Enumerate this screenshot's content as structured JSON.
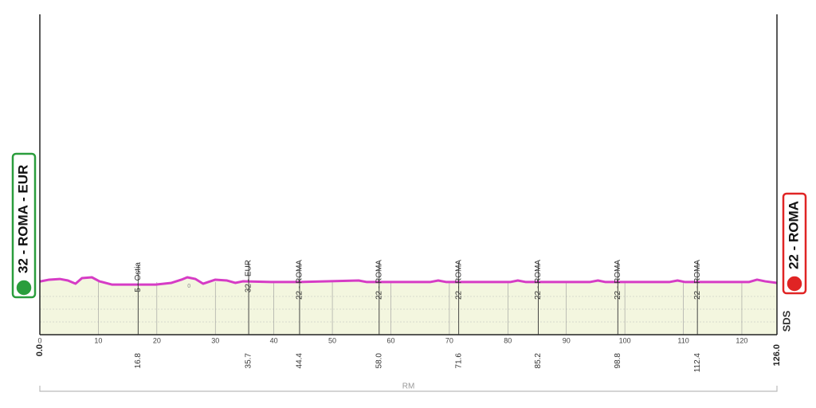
{
  "chart_data": {
    "type": "area",
    "x": [
      0,
      1.6,
      3.4,
      4.8,
      6.1,
      7.2,
      8.9,
      10.2,
      12.3,
      15,
      17,
      19.8,
      22.5,
      24.2,
      25.2,
      26.6,
      27.9,
      30,
      32,
      33.4,
      34.7,
      39.5,
      44.3,
      54.5,
      55.9,
      66.7,
      68.1,
      69.5,
      80.4,
      81.7,
      83.1,
      94,
      95.4,
      96.7,
      107.6,
      109,
      110.3,
      121.2,
      122.6,
      124,
      126
    ],
    "values": [
      32,
      45,
      50,
      39,
      16,
      56,
      62,
      33,
      10,
      10,
      10,
      10,
      22,
      45,
      62,
      50,
      16,
      45,
      39,
      22,
      33,
      28,
      28,
      39,
      28,
      28,
      39,
      28,
      28,
      39,
      28,
      28,
      39,
      28,
      28,
      39,
      28,
      28,
      45,
      33,
      22
    ],
    "color": "#d63cc5",
    "fill": "#f3f6df",
    "xlim": [
      0,
      126
    ],
    "ylim": [
      -350,
      1950
    ],
    "xticks": [
      0,
      10,
      20,
      30,
      40,
      50,
      60,
      70,
      80,
      90,
      100,
      110,
      120
    ],
    "start": {
      "km": {
        "value": 0,
        "label": "0.0"
      },
      "label": "32 - ROMA - EUR",
      "color": "#2a9d3c"
    },
    "finish": {
      "km": {
        "value": 126,
        "label": "126.0"
      },
      "label": "22 - ROMA",
      "color": "#e02424"
    },
    "waypoints": [
      {
        "km": 16.8,
        "label": "5 - Ostia"
      },
      {
        "km": 35.7,
        "label": "32 - EUR"
      },
      {
        "km": 44.4,
        "label": "22 - ROMA"
      },
      {
        "km": {
          "value": 58,
          "label": "58.0"
        },
        "label": "22 - ROMA"
      },
      {
        "km": 71.6,
        "label": "22 - ROMA"
      },
      {
        "km": 85.2,
        "label": "22 - ROMA"
      },
      {
        "km": 98.8,
        "label": "22 - ROMA"
      },
      {
        "km": 112.4,
        "label": "22 - ROMA"
      }
    ],
    "annotations": [
      {
        "km": 25.5,
        "text": "0"
      }
    ],
    "region": "RM",
    "logo": "SDS"
  }
}
